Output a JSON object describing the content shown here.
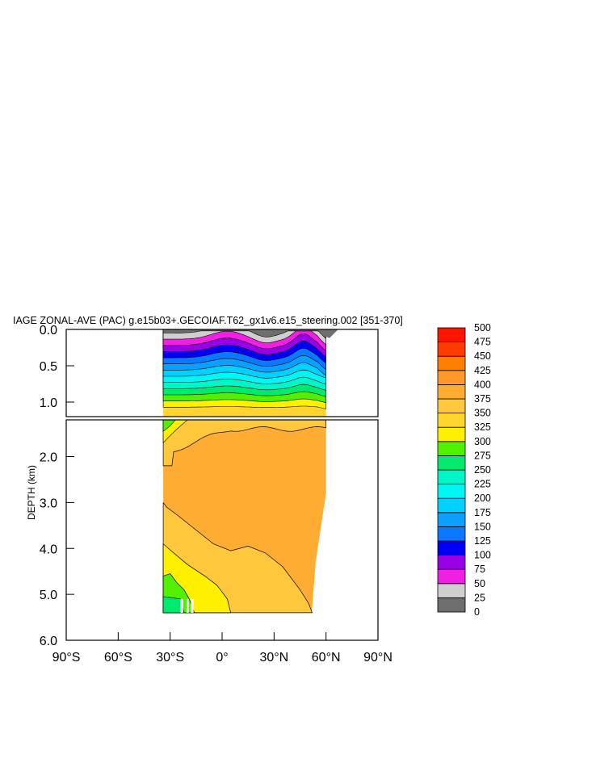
{
  "chart_data": {
    "type": "contour",
    "title": "IAGE ZONAL-AVE (PAC) g.e15b03+.GECOIAF.T62_gx1v6.e15_steering.002 [351-370]",
    "ylabel": "DEPTH (km)",
    "x_ticks": [
      "90°S",
      "60°S",
      "30°S",
      "0°",
      "30°N",
      "60°N",
      "90°N"
    ],
    "x_range": [
      -90,
      90
    ],
    "upper_panel": {
      "y_range": [
        0,
        1.2
      ],
      "y_ticks": [
        "0.0",
        "0.5",
        "1.0"
      ]
    },
    "lower_panel": {
      "y_range": [
        1.2,
        6.0
      ],
      "y_ticks": [
        "2.0",
        "3.0",
        "4.0",
        "5.0",
        "6.0"
      ]
    },
    "data_extent": {
      "lat_min": -34,
      "lat_max": 60,
      "max_depth_km": 5.4
    },
    "colorbar": {
      "levels": [
        0,
        25,
        50,
        75,
        100,
        125,
        150,
        175,
        200,
        225,
        250,
        275,
        300,
        325,
        350,
        375,
        400,
        425,
        450,
        475,
        500
      ],
      "labels": [
        "0",
        "25",
        "50",
        "75",
        "100",
        "125",
        "150",
        "175",
        "200",
        "225",
        "250",
        "275",
        "300",
        "325",
        "350",
        "375",
        "400",
        "425",
        "450",
        "475",
        "500"
      ],
      "colors": [
        "#6e6e6e",
        "#cfcfcf",
        "#f01fe2",
        "#9a00e6",
        "#0000f5",
        "#0a78ff",
        "#0aa0ff",
        "#00d2ff",
        "#00f5f5",
        "#00f5c8",
        "#00eb6e",
        "#50f000",
        "#fff000",
        "#ffd52e",
        "#ffc83c",
        "#ffad32",
        "#ff9a2a",
        "#ff8000",
        "#ff3c00",
        "#ff1400",
        "#d20000"
      ]
    }
  }
}
